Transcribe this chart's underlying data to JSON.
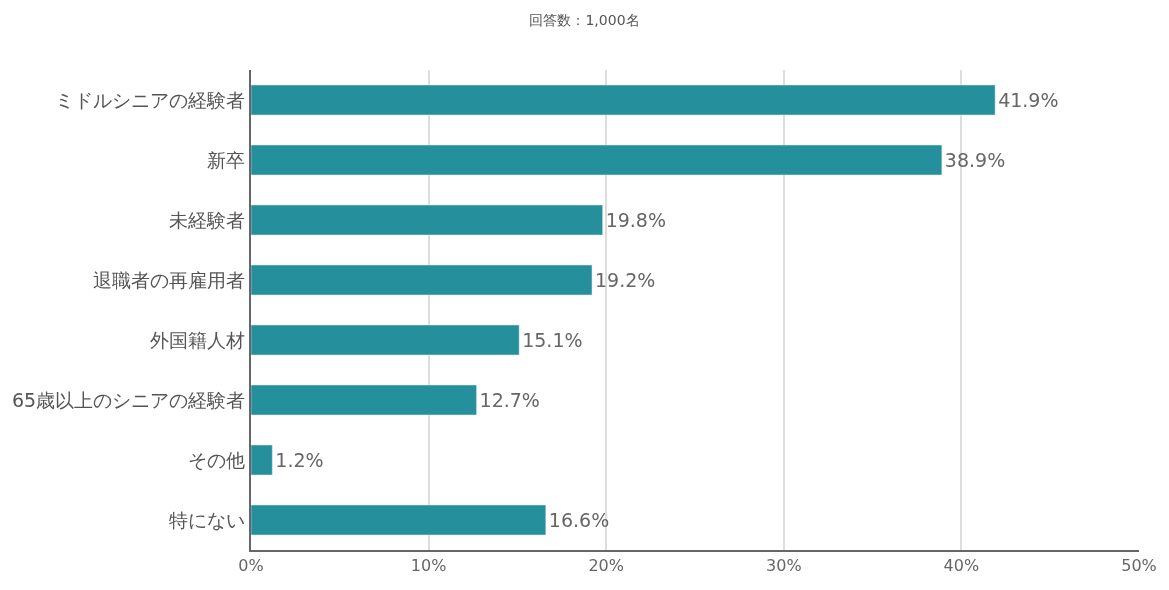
{
  "chart_data": {
    "type": "bar",
    "orientation": "horizontal",
    "title": "回答数：1,000名",
    "categories": [
      "ミドルシニアの経験者",
      "新卒",
      "未経験者",
      "退職者の再雇用者",
      "外国籍人材",
      "65歳以上のシニアの経験者",
      "その他",
      "特にない"
    ],
    "values": [
      41.9,
      38.9,
      19.8,
      19.2,
      15.1,
      12.7,
      1.2,
      16.6
    ],
    "value_labels": [
      "41.9%",
      "38.9%",
      "19.8%",
      "19.2%",
      "15.1%",
      "12.7%",
      "1.2%",
      "16.6%"
    ],
    "color": "#268f9c",
    "xlim": [
      0,
      50
    ],
    "xticks": [
      {
        "value": 0,
        "label": "0%"
      },
      {
        "value": 10,
        "label": "10%"
      },
      {
        "value": 20,
        "label": "20%"
      },
      {
        "value": 30,
        "label": "30%"
      },
      {
        "value": 40,
        "label": "40%"
      },
      {
        "value": 50,
        "label": "50%"
      }
    ],
    "grid": "x",
    "legend": false
  }
}
